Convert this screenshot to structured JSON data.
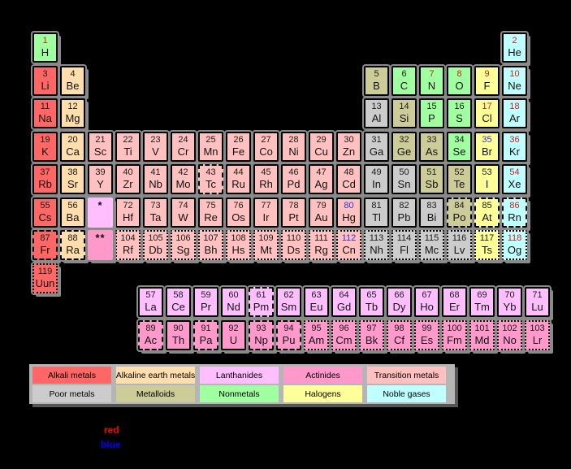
{
  "canvas": {
    "background": "#000000",
    "shadow_gray": "#8a8a8a",
    "legend_strip_gray": "#b5b5b5"
  },
  "category_colors": {
    "alkali": "#ff6666",
    "alkaline": "#ffdead",
    "lanthanide": "#ffbfff",
    "actinide": "#ff99cc",
    "transition": "#ffc0c0",
    "poor": "#cccccc",
    "metalloid": "#cccc99",
    "nonmetal": "#a0ffa0",
    "halogen": "#ffff99",
    "noble": "#c0ffff"
  },
  "number_colors": {
    "solid": "#1a1a1a",
    "gas": "#cc2222",
    "liquid": "#3333cc"
  },
  "element_fields": [
    "number",
    "symbol",
    "row",
    "col",
    "category",
    "state",
    "border"
  ],
  "elements": [
    [
      1,
      "H",
      1,
      1,
      "nonmetal",
      "gas",
      "solid"
    ],
    [
      2,
      "He",
      1,
      18,
      "noble",
      "gas",
      "solid"
    ],
    [
      3,
      "Li",
      2,
      1,
      "alkali",
      "solid",
      "solid"
    ],
    [
      4,
      "Be",
      2,
      2,
      "alkaline",
      "solid",
      "solid"
    ],
    [
      5,
      "B",
      2,
      13,
      "metalloid",
      "solid",
      "solid"
    ],
    [
      6,
      "C",
      2,
      14,
      "nonmetal",
      "solid",
      "solid"
    ],
    [
      7,
      "N",
      2,
      15,
      "nonmetal",
      "gas",
      "solid"
    ],
    [
      8,
      "O",
      2,
      16,
      "nonmetal",
      "gas",
      "solid"
    ],
    [
      9,
      "F",
      2,
      17,
      "halogen",
      "gas",
      "solid"
    ],
    [
      10,
      "Ne",
      2,
      18,
      "noble",
      "gas",
      "solid"
    ],
    [
      11,
      "Na",
      3,
      1,
      "alkali",
      "solid",
      "solid"
    ],
    [
      12,
      "Mg",
      3,
      2,
      "alkaline",
      "solid",
      "solid"
    ],
    [
      13,
      "Al",
      3,
      13,
      "poor",
      "solid",
      "solid"
    ],
    [
      14,
      "Si",
      3,
      14,
      "metalloid",
      "solid",
      "solid"
    ],
    [
      15,
      "P",
      3,
      15,
      "nonmetal",
      "solid",
      "solid"
    ],
    [
      16,
      "S",
      3,
      16,
      "nonmetal",
      "solid",
      "solid"
    ],
    [
      17,
      "Cl",
      3,
      17,
      "halogen",
      "gas",
      "solid"
    ],
    [
      18,
      "Ar",
      3,
      18,
      "noble",
      "gas",
      "solid"
    ],
    [
      19,
      "K",
      4,
      1,
      "alkali",
      "solid",
      "solid"
    ],
    [
      20,
      "Ca",
      4,
      2,
      "alkaline",
      "solid",
      "solid"
    ],
    [
      21,
      "Sc",
      4,
      3,
      "transition",
      "solid",
      "solid"
    ],
    [
      22,
      "Ti",
      4,
      4,
      "transition",
      "solid",
      "solid"
    ],
    [
      23,
      "V",
      4,
      5,
      "transition",
      "solid",
      "solid"
    ],
    [
      24,
      "Cr",
      4,
      6,
      "transition",
      "solid",
      "solid"
    ],
    [
      25,
      "Mn",
      4,
      7,
      "transition",
      "solid",
      "solid"
    ],
    [
      26,
      "Fe",
      4,
      8,
      "transition",
      "solid",
      "solid"
    ],
    [
      27,
      "Co",
      4,
      9,
      "transition",
      "solid",
      "solid"
    ],
    [
      28,
      "Ni",
      4,
      10,
      "transition",
      "solid",
      "solid"
    ],
    [
      29,
      "Cu",
      4,
      11,
      "transition",
      "solid",
      "solid"
    ],
    [
      30,
      "Zn",
      4,
      12,
      "transition",
      "solid",
      "solid"
    ],
    [
      31,
      "Ga",
      4,
      13,
      "poor",
      "solid",
      "solid"
    ],
    [
      32,
      "Ge",
      4,
      14,
      "metalloid",
      "solid",
      "solid"
    ],
    [
      33,
      "As",
      4,
      15,
      "metalloid",
      "solid",
      "solid"
    ],
    [
      34,
      "Se",
      4,
      16,
      "nonmetal",
      "solid",
      "solid"
    ],
    [
      35,
      "Br",
      4,
      17,
      "halogen",
      "liquid",
      "solid"
    ],
    [
      36,
      "Kr",
      4,
      18,
      "noble",
      "gas",
      "solid"
    ],
    [
      37,
      "Rb",
      5,
      1,
      "alkali",
      "solid",
      "solid"
    ],
    [
      38,
      "Sr",
      5,
      2,
      "alkaline",
      "solid",
      "solid"
    ],
    [
      39,
      "Y",
      5,
      3,
      "transition",
      "solid",
      "solid"
    ],
    [
      40,
      "Zr",
      5,
      4,
      "transition",
      "solid",
      "solid"
    ],
    [
      41,
      "Nb",
      5,
      5,
      "transition",
      "solid",
      "solid"
    ],
    [
      42,
      "Mo",
      5,
      6,
      "transition",
      "solid",
      "solid"
    ],
    [
      43,
      "Tc",
      5,
      7,
      "transition",
      "solid",
      "dashed"
    ],
    [
      44,
      "Ru",
      5,
      8,
      "transition",
      "solid",
      "solid"
    ],
    [
      45,
      "Rh",
      5,
      9,
      "transition",
      "solid",
      "solid"
    ],
    [
      46,
      "Pd",
      5,
      10,
      "transition",
      "solid",
      "solid"
    ],
    [
      47,
      "Ag",
      5,
      11,
      "transition",
      "solid",
      "solid"
    ],
    [
      48,
      "Cd",
      5,
      12,
      "transition",
      "solid",
      "solid"
    ],
    [
      49,
      "In",
      5,
      13,
      "poor",
      "solid",
      "solid"
    ],
    [
      50,
      "Sn",
      5,
      14,
      "poor",
      "solid",
      "solid"
    ],
    [
      51,
      "Sb",
      5,
      15,
      "metalloid",
      "solid",
      "solid"
    ],
    [
      52,
      "Te",
      5,
      16,
      "metalloid",
      "solid",
      "solid"
    ],
    [
      53,
      "I",
      5,
      17,
      "halogen",
      "solid",
      "solid"
    ],
    [
      54,
      "Xe",
      5,
      18,
      "noble",
      "gas",
      "solid"
    ],
    [
      55,
      "Cs",
      6,
      1,
      "alkali",
      "solid",
      "solid"
    ],
    [
      56,
      "Ba",
      6,
      2,
      "alkaline",
      "solid",
      "solid"
    ],
    [
      72,
      "Hf",
      6,
      4,
      "transition",
      "solid",
      "solid"
    ],
    [
      73,
      "Ta",
      6,
      5,
      "transition",
      "solid",
      "solid"
    ],
    [
      74,
      "W",
      6,
      6,
      "transition",
      "solid",
      "solid"
    ],
    [
      75,
      "Re",
      6,
      7,
      "transition",
      "solid",
      "solid"
    ],
    [
      76,
      "Os",
      6,
      8,
      "transition",
      "solid",
      "solid"
    ],
    [
      77,
      "Ir",
      6,
      9,
      "transition",
      "solid",
      "solid"
    ],
    [
      78,
      "Pt",
      6,
      10,
      "transition",
      "solid",
      "solid"
    ],
    [
      79,
      "Au",
      6,
      11,
      "transition",
      "solid",
      "solid"
    ],
    [
      80,
      "Hg",
      6,
      12,
      "transition",
      "liquid",
      "solid"
    ],
    [
      81,
      "Tl",
      6,
      13,
      "poor",
      "solid",
      "solid"
    ],
    [
      82,
      "Pb",
      6,
      14,
      "poor",
      "solid",
      "solid"
    ],
    [
      83,
      "Bi",
      6,
      15,
      "poor",
      "solid",
      "solid"
    ],
    [
      84,
      "Po",
      6,
      16,
      "metalloid",
      "solid",
      "dashed"
    ],
    [
      85,
      "At",
      6,
      17,
      "halogen",
      "solid",
      "dashed"
    ],
    [
      86,
      "Rn",
      6,
      18,
      "noble",
      "gas",
      "dashed"
    ],
    [
      87,
      "Fr",
      7,
      1,
      "alkali",
      "solid",
      "dashed"
    ],
    [
      88,
      "Ra",
      7,
      2,
      "alkaline",
      "solid",
      "dashed"
    ],
    [
      104,
      "Rf",
      7,
      4,
      "transition",
      "solid",
      "dotted"
    ],
    [
      105,
      "Db",
      7,
      5,
      "transition",
      "solid",
      "dotted"
    ],
    [
      106,
      "Sg",
      7,
      6,
      "transition",
      "solid",
      "dotted"
    ],
    [
      107,
      "Bh",
      7,
      7,
      "transition",
      "solid",
      "dotted"
    ],
    [
      108,
      "Hs",
      7,
      8,
      "transition",
      "solid",
      "dotted"
    ],
    [
      109,
      "Mt",
      7,
      9,
      "transition",
      "solid",
      "dotted"
    ],
    [
      110,
      "Ds",
      7,
      10,
      "transition",
      "solid",
      "dotted"
    ],
    [
      111,
      "Rg",
      7,
      11,
      "transition",
      "solid",
      "dotted"
    ],
    [
      112,
      "Cn",
      7,
      12,
      "transition",
      "liquid",
      "dotted"
    ],
    [
      113,
      "Nh",
      7,
      13,
      "poor",
      "solid",
      "dotted"
    ],
    [
      114,
      "Fl",
      7,
      14,
      "poor",
      "solid",
      "dotted"
    ],
    [
      115,
      "Mc",
      7,
      15,
      "poor",
      "solid",
      "dotted"
    ],
    [
      116,
      "Lv",
      7,
      16,
      "poor",
      "solid",
      "dotted"
    ],
    [
      117,
      "Ts",
      7,
      17,
      "halogen",
      "solid",
      "dotted"
    ],
    [
      118,
      "Og",
      7,
      18,
      "noble",
      "gas",
      "dotted"
    ],
    [
      119,
      "Uun",
      8,
      1,
      "alkali",
      "solid",
      "dotted"
    ],
    [
      57,
      "La",
      9,
      1,
      "lanthanide",
      "solid",
      "solid"
    ],
    [
      58,
      "Ce",
      9,
      2,
      "lanthanide",
      "solid",
      "solid"
    ],
    [
      59,
      "Pr",
      9,
      3,
      "lanthanide",
      "solid",
      "solid"
    ],
    [
      60,
      "Nd",
      9,
      4,
      "lanthanide",
      "solid",
      "solid"
    ],
    [
      61,
      "Pm",
      9,
      5,
      "lanthanide",
      "solid",
      "dashed"
    ],
    [
      62,
      "Sm",
      9,
      6,
      "lanthanide",
      "solid",
      "solid"
    ],
    [
      63,
      "Eu",
      9,
      7,
      "lanthanide",
      "solid",
      "solid"
    ],
    [
      64,
      "Gd",
      9,
      8,
      "lanthanide",
      "solid",
      "solid"
    ],
    [
      65,
      "Tb",
      9,
      9,
      "lanthanide",
      "solid",
      "solid"
    ],
    [
      66,
      "Dy",
      9,
      10,
      "lanthanide",
      "solid",
      "solid"
    ],
    [
      67,
      "Ho",
      9,
      11,
      "lanthanide",
      "solid",
      "solid"
    ],
    [
      68,
      "Er",
      9,
      12,
      "lanthanide",
      "solid",
      "solid"
    ],
    [
      69,
      "Tm",
      9,
      13,
      "lanthanide",
      "solid",
      "solid"
    ],
    [
      70,
      "Yb",
      9,
      14,
      "lanthanide",
      "solid",
      "solid"
    ],
    [
      71,
      "Lu",
      9,
      15,
      "lanthanide",
      "solid",
      "solid"
    ],
    [
      89,
      "Ac",
      10,
      1,
      "actinide",
      "solid",
      "dashed"
    ],
    [
      90,
      "Th",
      10,
      2,
      "actinide",
      "solid",
      "solid"
    ],
    [
      91,
      "Pa",
      10,
      3,
      "actinide",
      "solid",
      "dashed"
    ],
    [
      92,
      "U",
      10,
      4,
      "actinide",
      "solid",
      "solid"
    ],
    [
      93,
      "Np",
      10,
      5,
      "actinide",
      "solid",
      "dashed"
    ],
    [
      94,
      "Pu",
      10,
      6,
      "actinide",
      "solid",
      "dashed"
    ],
    [
      95,
      "Am",
      10,
      7,
      "actinide",
      "solid",
      "dotted"
    ],
    [
      96,
      "Cm",
      10,
      8,
      "actinide",
      "solid",
      "dotted"
    ],
    [
      97,
      "Bk",
      10,
      9,
      "actinide",
      "solid",
      "dotted"
    ],
    [
      98,
      "Cf",
      10,
      10,
      "actinide",
      "solid",
      "dotted"
    ],
    [
      99,
      "Es",
      10,
      11,
      "actinide",
      "solid",
      "dotted"
    ],
    [
      100,
      "Fm",
      10,
      12,
      "actinide",
      "solid",
      "dotted"
    ],
    [
      101,
      "Md",
      10,
      13,
      "actinide",
      "solid",
      "dotted"
    ],
    [
      102,
      "No",
      10,
      14,
      "actinide",
      "solid",
      "dotted"
    ],
    [
      103,
      "Lr",
      10,
      15,
      "actinide",
      "solid",
      "dotted"
    ]
  ],
  "placeholders": [
    {
      "symbol": "*",
      "row": 6,
      "col": 3,
      "category": "lanthanide"
    },
    {
      "symbol": "**",
      "row": 7,
      "col": 3,
      "category": "actinide"
    }
  ],
  "legend": {
    "rows": [
      [
        {
          "label": "Alkali metals",
          "category": "alkali"
        },
        {
          "label": "Alkaline earth metals",
          "category": "alkaline"
        },
        {
          "label": "Lanthanides",
          "category": "lanthanide"
        },
        {
          "label": "Actinides",
          "category": "actinide"
        },
        {
          "label": "Transition metals",
          "category": "transition"
        }
      ],
      [
        {
          "label": "Poor metals",
          "category": "poor"
        },
        {
          "label": "Metalloids",
          "category": "metalloid"
        },
        {
          "label": "Nonmetals",
          "category": "nonmetal"
        },
        {
          "label": "Halogens",
          "category": "halogen"
        },
        {
          "label": "Noble gases",
          "category": "noble"
        }
      ]
    ]
  },
  "state_key": [
    {
      "text": "red",
      "color": "#ff0000"
    },
    {
      "text": "blue",
      "color": "#0000ff"
    }
  ]
}
